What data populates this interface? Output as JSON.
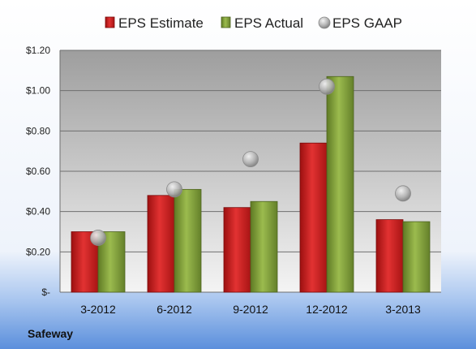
{
  "chart_data": {
    "type": "bar",
    "categories": [
      "3-2012",
      "6-2012",
      "9-2012",
      "12-2012",
      "3-2013"
    ],
    "series": [
      {
        "name": "EPS Estimate",
        "values": [
          0.3,
          0.48,
          0.42,
          0.74,
          0.36
        ],
        "color": "#d42a2a"
      },
      {
        "name": "EPS Actual",
        "values": [
          0.3,
          0.51,
          0.45,
          1.07,
          0.35
        ],
        "color": "#8aa83e"
      }
    ],
    "gaap": {
      "name": "EPS GAAP",
      "values": [
        0.27,
        0.51,
        0.66,
        1.02,
        0.49
      ],
      "color": "#a9a9a9"
    },
    "yticks": [
      "$-",
      "$0.20",
      "$0.40",
      "$0.60",
      "$0.80",
      "$1.00",
      "$1.20"
    ],
    "ylim": [
      0,
      1.2
    ],
    "grid": true,
    "legend": "top",
    "company": "Safeway"
  }
}
